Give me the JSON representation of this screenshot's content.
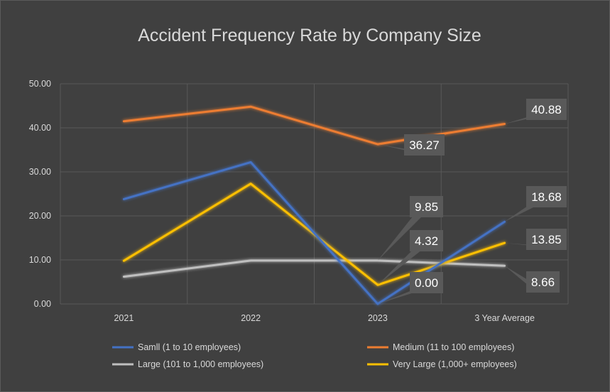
{
  "chart_data": {
    "type": "line",
    "title": "Accident Frequency Rate by Company Size",
    "categories": [
      "2021",
      "2022",
      "2023",
      "3 Year Average"
    ],
    "y_ticks": [
      "0.00",
      "10.00",
      "20.00",
      "30.00",
      "40.00",
      "50.00"
    ],
    "ylim": [
      0,
      50
    ],
    "grid": true,
    "legend_position": "bottom",
    "series": [
      {
        "name": "Samll (1 to 10 employees)",
        "color": "#4472c4",
        "values": [
          23.8,
          32.2,
          0.0,
          18.68
        ]
      },
      {
        "name": "Medium (11 to 100 employees)",
        "color": "#ed7d31",
        "values": [
          41.5,
          44.8,
          36.27,
          40.88
        ]
      },
      {
        "name": "Large (101 to 1,000 employees)",
        "color": "#bfbfbf",
        "values": [
          6.2,
          9.85,
          9.85,
          8.66
        ]
      },
      {
        "name": "Very Large (1,000+ employees)",
        "color": "#ffc000",
        "values": [
          9.8,
          27.3,
          4.32,
          13.85
        ]
      }
    ],
    "data_labels": [
      {
        "series": 1,
        "point": 2,
        "text": "36.27"
      },
      {
        "series": 1,
        "point": 3,
        "text": "40.88"
      },
      {
        "series": 2,
        "point": 2,
        "text": "9.85"
      },
      {
        "series": 3,
        "point": 2,
        "text": "4.32"
      },
      {
        "series": 0,
        "point": 2,
        "text": "0.00"
      },
      {
        "series": 0,
        "point": 3,
        "text": "18.68"
      },
      {
        "series": 3,
        "point": 3,
        "text": "13.85"
      },
      {
        "series": 2,
        "point": 3,
        "text": "8.66"
      }
    ]
  }
}
